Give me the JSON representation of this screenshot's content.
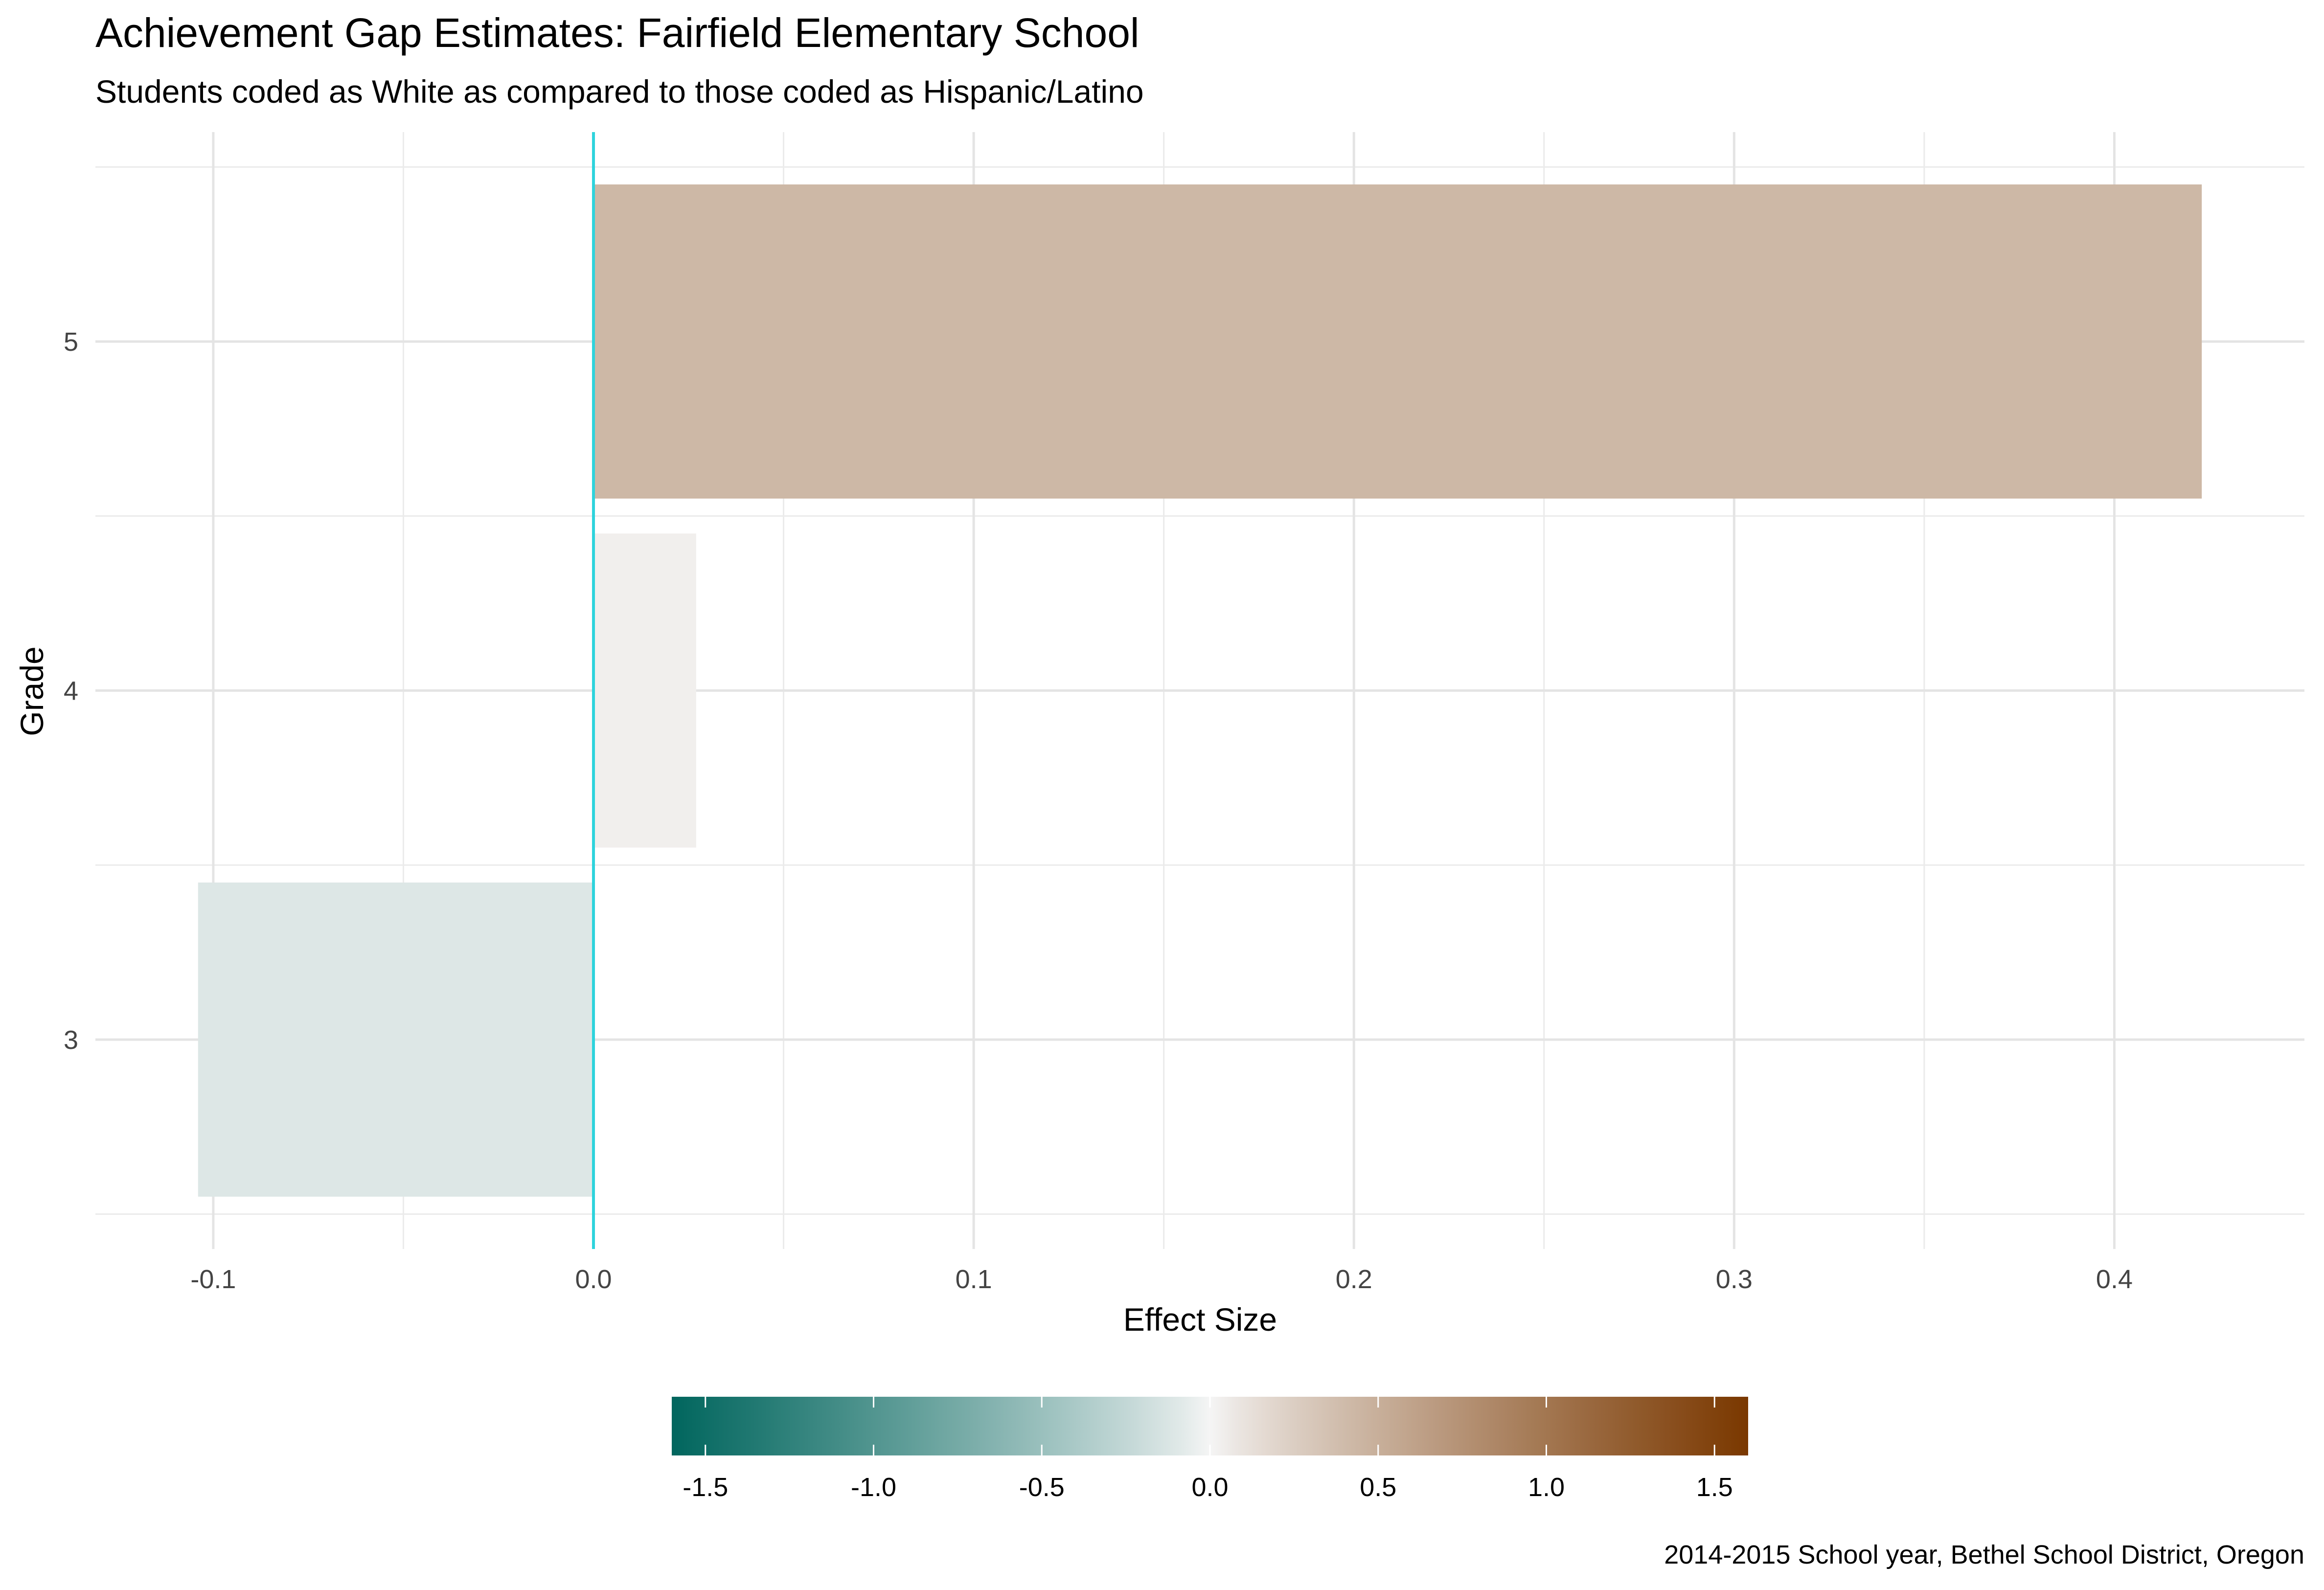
{
  "chart_data": {
    "type": "bar",
    "orientation": "horizontal",
    "title": "Achievement Gap Estimates: Fairfield Elementary School",
    "subtitle": "Students coded as White as compared to those coded as Hispanic/Latino",
    "caption": "2014-2015 School year, Bethel School District, Oregon",
    "xlabel": "Effect Size",
    "ylabel": "Grade",
    "categories": [
      "3",
      "4",
      "5"
    ],
    "values": [
      -0.104,
      0.027,
      0.423
    ],
    "xlim": [
      -0.131,
      0.45
    ],
    "x_ticks": [
      -0.1,
      0.0,
      0.1,
      0.2,
      0.3,
      0.4
    ],
    "x_tick_labels": [
      "-0.1",
      "0.0",
      "0.1",
      "0.2",
      "0.3",
      "0.4"
    ],
    "reference_line": {
      "x": 0,
      "color": "#2ed3dc"
    },
    "grid": true,
    "legend": {
      "type": "colorbar",
      "position": "bottom",
      "range": [
        -1.6,
        1.6
      ],
      "ticks": [
        -1.5,
        -1.0,
        -0.5,
        0.0,
        0.5,
        1.0,
        1.5
      ],
      "tick_labels": [
        "-1.5",
        "-1.0",
        "-0.5",
        "0.0",
        "0.5",
        "1.0",
        "1.5"
      ],
      "colors": {
        "low": "#01665e",
        "mid": "#f5f5f5",
        "high": "#7a3800"
      }
    }
  }
}
